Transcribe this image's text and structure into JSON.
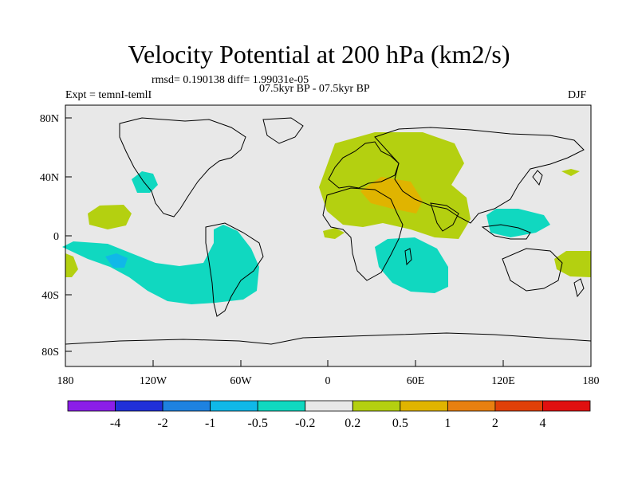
{
  "title": "Velocity Potential at 200 hPa (km2/s)",
  "stats": "rmsd= 0.190138 diff= 1.99031e-05",
  "experiment": "Expt = temnI-temlI",
  "period": "07.5kyr BP - 07.5kyr BP",
  "season": "DJF",
  "lat_ticks": [
    "80N",
    "40N",
    "0",
    "40S",
    "80S"
  ],
  "lon_ticks": [
    "180",
    "120W",
    "60W",
    "0",
    "60E",
    "120E",
    "180"
  ],
  "colorbar": {
    "labels": [
      "-4",
      "-2",
      "-1",
      "-0.5",
      "-0.2",
      "0.2",
      "0.5",
      "1",
      "2",
      "4"
    ],
    "colors": [
      "#8b1ee8",
      "#2030d8",
      "#1e82e0",
      "#10b8e8",
      "#10d8c0",
      "#e8e8e8",
      "#b4d010",
      "#e0b400",
      "#e88010",
      "#e04008",
      "#e01010"
    ]
  },
  "colors": {
    "land_ocean": "#e8e8e8",
    "positive_weak": "#b4d010",
    "positive_mid": "#e0b400",
    "positive_strong": "#e88010",
    "negative_weak": "#10d8c0",
    "negative_mid": "#10b8e8"
  }
}
